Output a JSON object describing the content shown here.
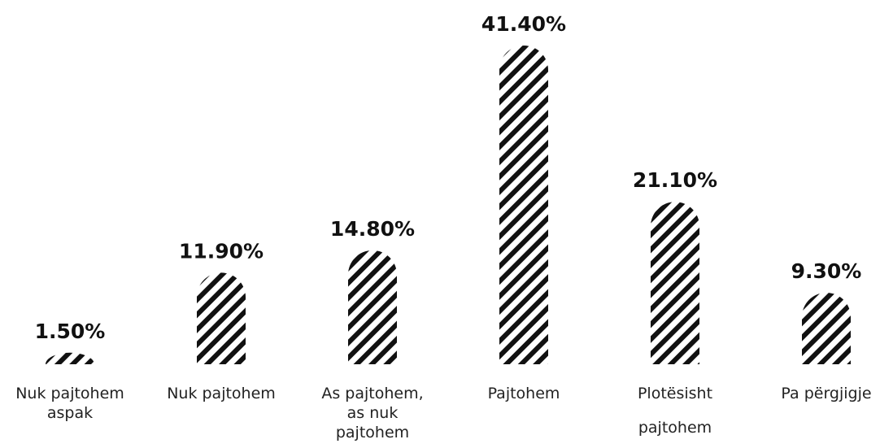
{
  "chart_data": {
    "type": "bar",
    "categories": [
      [
        "Nuk pajtohem",
        "aspak"
      ],
      [
        "Nuk pajtohem"
      ],
      [
        "As pajtohem,",
        "as nuk",
        "pajtohem"
      ],
      [
        "Pajtohem"
      ],
      [
        "Plotësisht",
        "pajtohem"
      ],
      [
        "Pa përgjigje"
      ]
    ],
    "values": [
      1.5,
      11.9,
      14.8,
      41.4,
      21.1,
      9.3
    ],
    "data_labels": [
      "1.50%",
      "11.90%",
      "14.80%",
      "41.40%",
      "21.10%",
      "9.30%"
    ],
    "unit": "%",
    "bar_fill": "hatched-diagonal",
    "bar_color": "#111111",
    "background": "#ffffff",
    "title": "",
    "xlabel": "",
    "ylabel": "",
    "grid": false,
    "legend": "none"
  }
}
